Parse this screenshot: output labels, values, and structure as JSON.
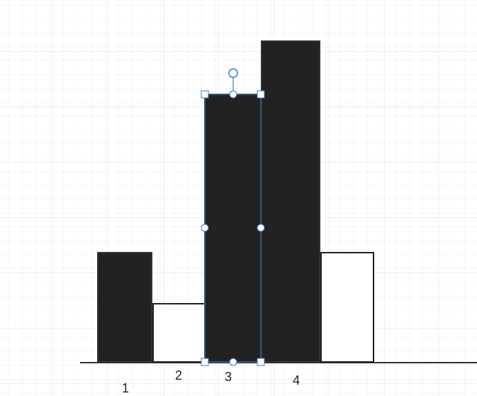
{
  "labels": [
    "1",
    "2",
    "3",
    "4"
  ]
}
